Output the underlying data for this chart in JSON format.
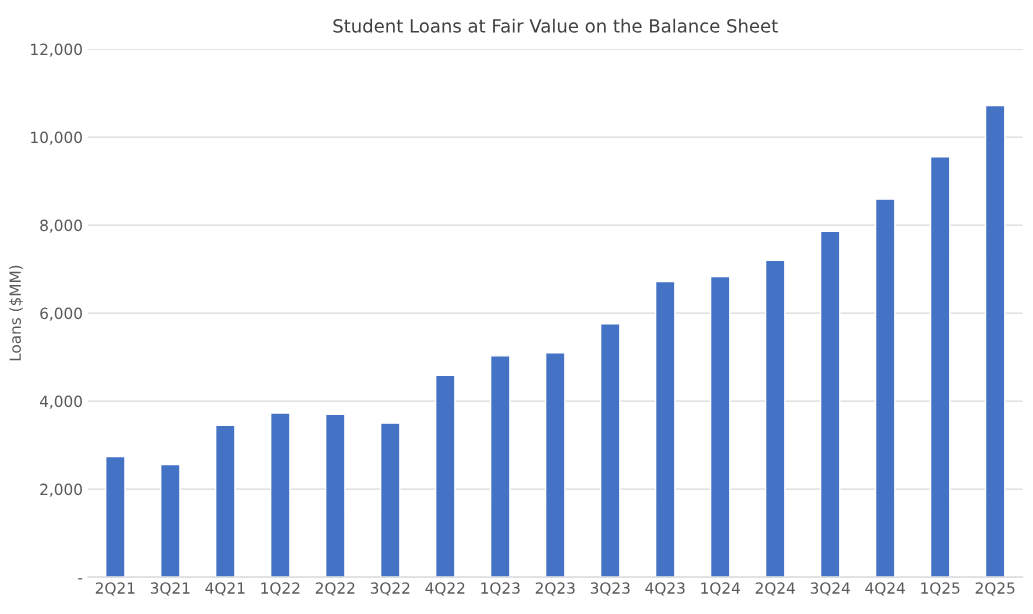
{
  "chart_data": {
    "type": "bar",
    "title": "Student Loans at Fair Value on the Balance Sheet",
    "ylabel": "Loans ($MM)",
    "categories": [
      "2Q21",
      "3Q21",
      "4Q21",
      "1Q22",
      "2Q22",
      "3Q22",
      "4Q22",
      "1Q23",
      "2Q23",
      "3Q23",
      "4Q23",
      "1Q24",
      "2Q24",
      "3Q24",
      "4Q24",
      "1Q25",
      "2Q25"
    ],
    "values": [
      2740,
      2560,
      3450,
      3730,
      3700,
      3500,
      4590,
      5030,
      5100,
      5760,
      6720,
      6830,
      7200,
      7860,
      8590,
      9550,
      10720
    ],
    "color": "#4472c4",
    "ylim": [
      0,
      12000
    ],
    "yticks": [
      {
        "value": 0,
        "label": "-"
      },
      {
        "value": 2000,
        "label": "2,000"
      },
      {
        "value": 4000,
        "label": "4,000"
      },
      {
        "value": 6000,
        "label": "6,000"
      },
      {
        "value": 8000,
        "label": "8,000"
      },
      {
        "value": 10000,
        "label": "10,000"
      },
      {
        "value": 12000,
        "label": "12,000"
      }
    ],
    "grid": "y",
    "legend": false
  }
}
